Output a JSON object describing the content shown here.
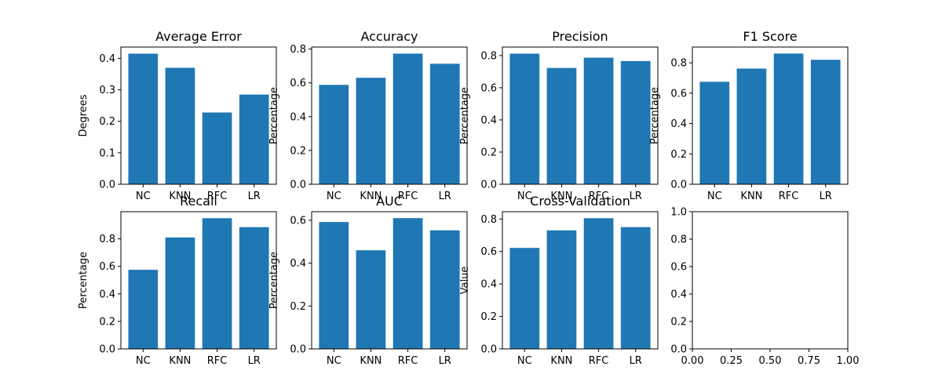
{
  "colors": {
    "bar": "#1f77b4",
    "axis": "#000000",
    "background": "#ffffff"
  },
  "chart_data": [
    {
      "type": "bar",
      "title": "Average Error",
      "xlabel": "",
      "ylabel": "Degrees",
      "categories": [
        "NC",
        "KNN",
        "RFC",
        "LR"
      ],
      "values": [
        0.415,
        0.37,
        0.228,
        0.285
      ],
      "ylim": [
        0,
        0.436
      ],
      "yticks": [
        0.0,
        0.1,
        0.2,
        0.3,
        0.4
      ],
      "ytick_labels": [
        "0.0",
        "0.1",
        "0.2",
        "0.3",
        "0.4"
      ]
    },
    {
      "type": "bar",
      "title": "Accuracy",
      "xlabel": "",
      "ylabel": "Percentage",
      "categories": [
        "NC",
        "KNN",
        "RFC",
        "LR"
      ],
      "values": [
        0.588,
        0.63,
        0.773,
        0.713
      ],
      "ylim": [
        0,
        0.812
      ],
      "yticks": [
        0.0,
        0.2,
        0.4,
        0.6,
        0.8
      ],
      "ytick_labels": [
        "0.0",
        "0.2",
        "0.4",
        "0.6",
        "0.8"
      ]
    },
    {
      "type": "bar",
      "title": "Precision",
      "xlabel": "",
      "ylabel": "Percentage",
      "categories": [
        "NC",
        "KNN",
        "RFC",
        "LR"
      ],
      "values": [
        0.812,
        0.723,
        0.787,
        0.766
      ],
      "ylim": [
        0,
        0.853
      ],
      "yticks": [
        0.0,
        0.2,
        0.4,
        0.6,
        0.8
      ],
      "ytick_labels": [
        "0.0",
        "0.2",
        "0.4",
        "0.6",
        "0.8"
      ]
    },
    {
      "type": "bar",
      "title": "F1 Score",
      "xlabel": "",
      "ylabel": "Percentage",
      "categories": [
        "NC",
        "KNN",
        "RFC",
        "LR"
      ],
      "values": [
        0.675,
        0.762,
        0.861,
        0.82
      ],
      "ylim": [
        0,
        0.904
      ],
      "yticks": [
        0.0,
        0.2,
        0.4,
        0.6,
        0.8
      ],
      "ytick_labels": [
        "0.0",
        "0.2",
        "0.4",
        "0.6",
        "0.8"
      ]
    },
    {
      "type": "bar",
      "title": "Recall",
      "xlabel": "",
      "ylabel": "Percentage",
      "categories": [
        "NC",
        "KNN",
        "RFC",
        "LR"
      ],
      "values": [
        0.575,
        0.81,
        0.95,
        0.885
      ],
      "ylim": [
        0,
        0.9975
      ],
      "yticks": [
        0.0,
        0.2,
        0.4,
        0.6,
        0.8
      ],
      "ytick_labels": [
        "0.0",
        "0.2",
        "0.4",
        "0.6",
        "0.8"
      ]
    },
    {
      "type": "bar",
      "title": "AUC",
      "xlabel": "",
      "ylabel": "Percentage",
      "categories": [
        "NC",
        "KNN",
        "RFC",
        "LR"
      ],
      "values": [
        0.592,
        0.46,
        0.61,
        0.553
      ],
      "ylim": [
        0,
        0.64
      ],
      "yticks": [
        0.0,
        0.2,
        0.4,
        0.6
      ],
      "ytick_labels": [
        "0.0",
        "0.2",
        "0.4",
        "0.6"
      ]
    },
    {
      "type": "bar",
      "title": "Cross-Validation",
      "xlabel": "",
      "ylabel": "Value",
      "categories": [
        "NC",
        "KNN",
        "RFC",
        "LR"
      ],
      "values": [
        0.622,
        0.73,
        0.805,
        0.75
      ],
      "ylim": [
        0,
        0.845
      ],
      "yticks": [
        0.0,
        0.2,
        0.4,
        0.6,
        0.8
      ],
      "ytick_labels": [
        "0.0",
        "0.2",
        "0.4",
        "0.6",
        "0.8"
      ]
    },
    {
      "type": "empty",
      "title": "",
      "xlabel": "",
      "ylabel": "",
      "categories": [],
      "values": [],
      "xlim": [
        0,
        1
      ],
      "ylim": [
        0,
        1
      ],
      "xticks": [
        0.0,
        0.25,
        0.5,
        0.75,
        1.0
      ],
      "xtick_labels": [
        "0.00",
        "0.25",
        "0.50",
        "0.75",
        "1.00"
      ],
      "yticks": [
        0.0,
        0.2,
        0.4,
        0.6,
        0.8,
        1.0
      ],
      "ytick_labels": [
        "0.0",
        "0.2",
        "0.4",
        "0.6",
        "0.8",
        "1.0"
      ]
    }
  ]
}
